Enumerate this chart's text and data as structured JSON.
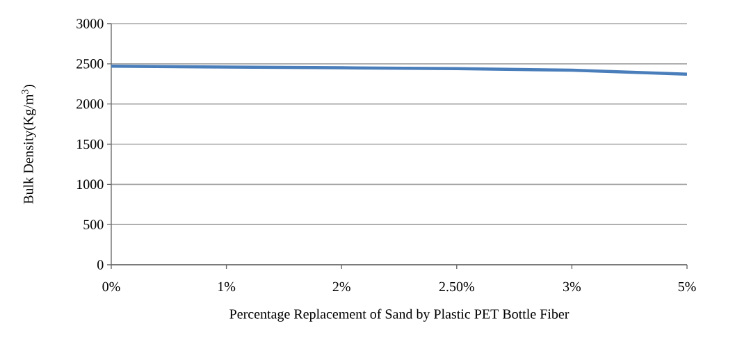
{
  "chart_data": {
    "type": "line",
    "xlabel": "Percentage Replacement of Sand by Plastic PET Bottle Fiber",
    "ylabel": "Bulk Density(Kg/m$^{3}$)",
    "categories": [
      "0%",
      "1%",
      "2%",
      "2.50%",
      "3%",
      "5%"
    ],
    "series": [
      {
        "color": "#4a7ebb",
        "values": [
          2470,
          2460,
          2450,
          2440,
          2420,
          2370
        ]
      }
    ],
    "ylim": [
      0,
      3000
    ],
    "yticks": [
      0,
      500,
      1000,
      1500,
      2000,
      2500,
      3000
    ],
    "grid": "y",
    "marker": "none",
    "line_style": "solid"
  }
}
